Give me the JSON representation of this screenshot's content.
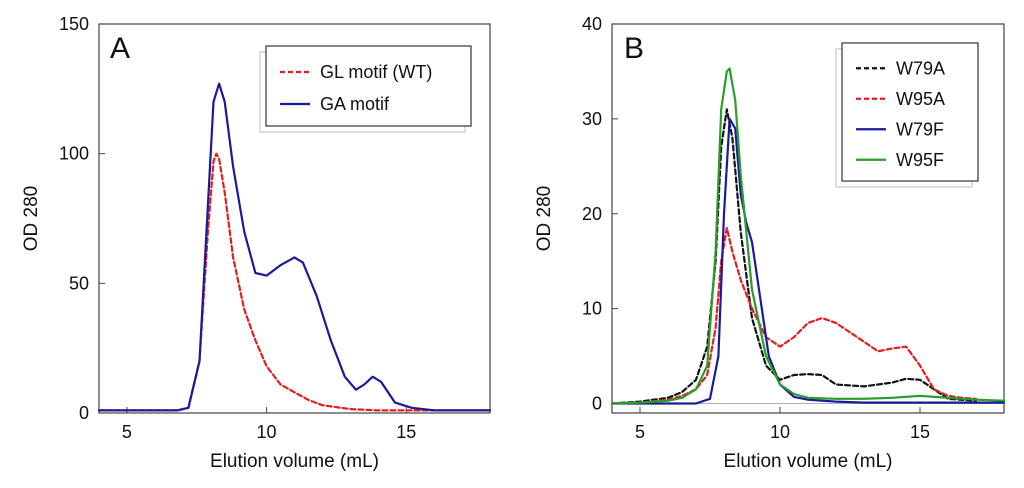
{
  "chart_data": [
    {
      "type": "line",
      "panel_label": "A",
      "xlabel": "Elution volume (mL)",
      "ylabel": "OD 280",
      "xlim": [
        4,
        18
      ],
      "ylim": [
        0,
        150
      ],
      "xticks": [
        5,
        10,
        15
      ],
      "yticks": [
        0,
        50,
        100,
        150
      ],
      "legend_position": "top-right",
      "series": [
        {
          "name": "GL motif (WT)",
          "color": "#e02020",
          "dash": true,
          "x": [
            4,
            6.8,
            7.2,
            7.6,
            7.9,
            8.1,
            8.2,
            8.3,
            8.5,
            8.8,
            9.2,
            9.6,
            10,
            10.5,
            11,
            11.5,
            12,
            13,
            14,
            15,
            16,
            17,
            18
          ],
          "y": [
            1,
            1,
            2,
            20,
            70,
            97,
            100,
            98,
            85,
            60,
            40,
            28,
            18,
            11,
            8,
            5,
            3,
            1.5,
            1,
            1,
            1,
            1,
            1
          ]
        },
        {
          "name": "GA motif",
          "color": "#1a1a9a",
          "dash": false,
          "x": [
            4,
            6.8,
            7.2,
            7.6,
            7.9,
            8.1,
            8.3,
            8.5,
            8.8,
            9.2,
            9.6,
            10,
            10.5,
            11,
            11.3,
            11.8,
            12.3,
            12.8,
            13.2,
            13.5,
            13.8,
            14.1,
            14.6,
            15.2,
            16,
            17,
            18
          ],
          "y": [
            1,
            1,
            2,
            20,
            80,
            120,
            127,
            120,
            95,
            70,
            54,
            53,
            57,
            60,
            58,
            45,
            28,
            14,
            9,
            11,
            14,
            12,
            4,
            2,
            1,
            1,
            1
          ]
        }
      ]
    },
    {
      "type": "line",
      "panel_label": "B",
      "xlabel": "Elution volume (mL)",
      "ylabel": "OD 280",
      "xlim": [
        4,
        18
      ],
      "ylim": [
        -1,
        40
      ],
      "xticks": [
        5,
        10,
        15
      ],
      "yticks": [
        0,
        10,
        20,
        30,
        40
      ],
      "legend_position": "top-right",
      "series": [
        {
          "name": "W79A",
          "color": "#111111",
          "dash": true,
          "x": [
            4,
            5,
            6,
            6.5,
            7,
            7.4,
            7.7,
            7.9,
            8.1,
            8.3,
            8.6,
            9,
            9.5,
            10,
            10.5,
            11,
            11.5,
            12,
            13,
            14,
            14.5,
            15,
            15.5,
            16,
            17
          ],
          "y": [
            0,
            0.2,
            0.6,
            1.2,
            2.5,
            6,
            15,
            27,
            31,
            28,
            18,
            9,
            4,
            2.5,
            3,
            3.1,
            3,
            2,
            1.8,
            2.2,
            2.6,
            2.5,
            1.5,
            0.5,
            0.3
          ]
        },
        {
          "name": "W95A",
          "color": "#e02020",
          "dash": true,
          "x": [
            4,
            5,
            6,
            6.5,
            7,
            7.4,
            7.7,
            7.9,
            8.1,
            8.3,
            8.6,
            9,
            9.5,
            10,
            10.5,
            11,
            11.5,
            12,
            12.5,
            13,
            13.5,
            14,
            14.5,
            15,
            15.5,
            16,
            16.5,
            17
          ],
          "y": [
            0,
            0.1,
            0.4,
            0.8,
            1.5,
            3,
            8,
            15,
            18.5,
            16,
            13,
            10,
            7,
            6,
            7,
            8.5,
            9,
            8.5,
            7.5,
            6.5,
            5.5,
            5.8,
            6,
            4,
            1.5,
            0.8,
            0.6,
            0.5
          ]
        },
        {
          "name": "W79F",
          "color": "#1a1a9a",
          "dash": false,
          "x": [
            4,
            6,
            7,
            7.5,
            7.8,
            8,
            8.2,
            8.4,
            8.6,
            8.8,
            9,
            9.3,
            9.6,
            10,
            10.5,
            11,
            12,
            13,
            14,
            15,
            16,
            17,
            18
          ],
          "y": [
            0,
            0,
            0,
            0.5,
            5,
            20,
            30,
            29,
            22,
            19,
            17,
            11,
            5,
            2,
            0.7,
            0.4,
            0.2,
            0.1,
            0.1,
            0.1,
            0.1,
            0.1,
            0.1
          ]
        },
        {
          "name": "W95F",
          "color": "#2a9d2a",
          "dash": false,
          "x": [
            4,
            5,
            6,
            6.5,
            7,
            7.4,
            7.7,
            7.9,
            8.1,
            8.2,
            8.4,
            8.6,
            9,
            9.5,
            10,
            10.5,
            11,
            12,
            13,
            14,
            15,
            16,
            17,
            18
          ],
          "y": [
            0,
            0.1,
            0.3,
            0.6,
            1.5,
            4,
            16,
            31,
            35,
            35.3,
            32,
            24,
            12,
            5,
            2,
            1,
            0.6,
            0.5,
            0.5,
            0.6,
            0.8,
            0.6,
            0.4,
            0.3
          ]
        }
      ]
    }
  ]
}
